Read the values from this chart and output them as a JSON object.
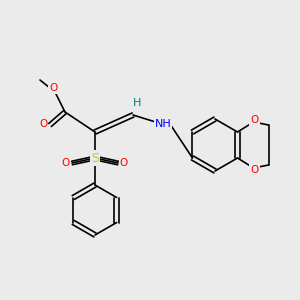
{
  "bg_color": "#ebebeb",
  "bond_color": "#000000",
  "atom_colors": {
    "O": "#ff0000",
    "S": "#cccc00",
    "N": "#0000ff",
    "H": "#008080",
    "C": "#000000"
  },
  "font_size": 7.5,
  "bond_width": 1.2
}
